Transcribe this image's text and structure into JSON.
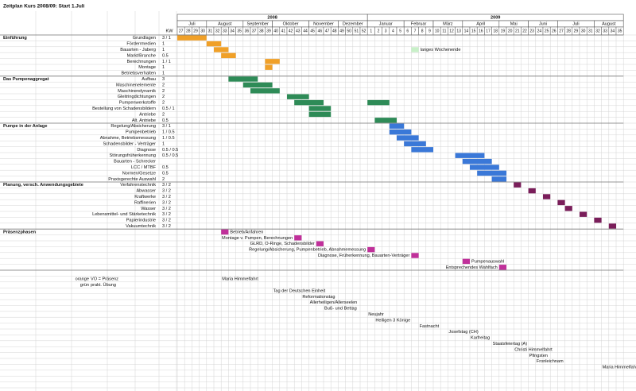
{
  "title": "Zeitplan Kurs 2008/09: Start 1.Juli",
  "kw_label": "KW",
  "kw": [
    27,
    28,
    29,
    30,
    31,
    32,
    33,
    34,
    35,
    36,
    37,
    38,
    39,
    40,
    41,
    42,
    43,
    44,
    45,
    46,
    47,
    48,
    49,
    50,
    51,
    52,
    1,
    2,
    3,
    4,
    5,
    6,
    7,
    8,
    9,
    10,
    11,
    12,
    13,
    14,
    15,
    16,
    17,
    18,
    19,
    20,
    21,
    22,
    23,
    24,
    25,
    26,
    27,
    28,
    29,
    30,
    31,
    32,
    33,
    34,
    35
  ],
  "years": [
    {
      "label": "2008",
      "start": "2008-27"
    },
    {
      "label": "2009",
      "start": "2009-1"
    }
  ],
  "months": [
    {
      "label": "Juli",
      "start": "2008-27"
    },
    {
      "label": "August",
      "start": "2008-31"
    },
    {
      "label": "September",
      "start": "2008-36"
    },
    {
      "label": "Oktober",
      "start": "2008-40"
    },
    {
      "label": "November",
      "start": "2008-45"
    },
    {
      "label": "Dezember",
      "start": "2008-49"
    },
    {
      "label": "Januar",
      "start": "2009-1"
    },
    {
      "label": "Februar",
      "start": "2009-6"
    },
    {
      "label": "März",
      "start": "2009-10"
    },
    {
      "label": "April",
      "start": "2009-14"
    },
    {
      "label": "Mai",
      "start": "2009-19"
    },
    {
      "label": "Juni",
      "start": "2009-23"
    },
    {
      "label": "Juli",
      "start": "2009-27"
    },
    {
      "label": "August",
      "start": "2009-32"
    }
  ],
  "sections": [
    {
      "title": "Einführung",
      "color": "#f0a028",
      "rows": [
        {
          "label": "Grundlagen",
          "value": "3 / 1",
          "label_color": "#d98a10",
          "bars": [
            {
              "from": "2008-27",
              "to": "2008-30"
            }
          ]
        },
        {
          "label": "Förderrmedien",
          "value": "1",
          "bars": [
            {
              "from": "2008-31",
              "to": "2008-32"
            }
          ]
        },
        {
          "label": "Bauarten - Jaberg",
          "value": "1",
          "bars": [
            {
              "from": "2008-32",
              "to": "2008-33"
            }
          ]
        },
        {
          "label": "Markt/Branche",
          "value": "0.5",
          "bars": [
            {
              "from": "2008-33",
              "to": "2008-34"
            }
          ]
        },
        {
          "label": "Berechnungen",
          "value": "1 / 1",
          "label_color": "#d98a10",
          "bars": [
            {
              "from": "2008-39",
              "to": "2008-40"
            }
          ]
        },
        {
          "label": "Montage",
          "value": "1",
          "label_color": "#3a9a3a",
          "bars": [
            {
              "from": "2008-39",
              "to": "2008-39"
            }
          ]
        },
        {
          "label": "Betriebsverhalten",
          "value": "1",
          "label_color": "#3a9a3a",
          "bars": []
        }
      ]
    },
    {
      "title": "Das Pumpenaggregat",
      "color": "#2e8b57",
      "rows": [
        {
          "label": "Aufbau",
          "value": "3",
          "bars": [
            {
              "from": "2008-34",
              "to": "2008-37"
            }
          ]
        },
        {
          "label": "Maschinenelemente",
          "value": "2",
          "bars": [
            {
              "from": "2008-36",
              "to": "2008-39"
            }
          ]
        },
        {
          "label": "Maschinendynamik",
          "value": "2",
          "bars": [
            {
              "from": "2008-37",
              "to": "2008-40"
            }
          ]
        },
        {
          "label": "Gleitringdichtungen",
          "value": "2",
          "label_color": "#d98a10",
          "bars": [
            {
              "from": "2008-42",
              "to": "2008-44"
            }
          ]
        },
        {
          "label": "Pumpenwerkstoffe",
          "value": "2",
          "bars": [
            {
              "from": "2008-43",
              "to": "2008-46"
            },
            {
              "from": "2009-1",
              "to": "2009-3"
            }
          ]
        },
        {
          "label": "Bestellung von Schadensbildern",
          "value": "0.5 / 1",
          "label_color": "#3a9a3a",
          "bars": [
            {
              "from": "2008-45",
              "to": "2008-47"
            }
          ]
        },
        {
          "label": "Antriebe",
          "value": "2",
          "bars": [
            {
              "from": "2008-45",
              "to": "2008-47"
            }
          ]
        },
        {
          "label": "Alt. Antriebe",
          "value": "0.5",
          "bars": [
            {
              "from": "2009-2",
              "to": "2009-4"
            }
          ]
        }
      ]
    },
    {
      "title": "Pumpe in der Anlage",
      "color": "#3a78d8",
      "rows": [
        {
          "label": "Regelung/Absicherung",
          "value": "3 / 1",
          "label_color": "#d98a10",
          "bars": [
            {
              "from": "2009-4",
              "to": "2009-5"
            }
          ]
        },
        {
          "label": "Pumpenbetrieb",
          "value": "1 / 0.5",
          "label_color": "#d98a10",
          "bars": [
            {
              "from": "2009-4",
              "to": "2009-6"
            }
          ]
        },
        {
          "label": "Abnahme, Betriebsmessung",
          "value": "1 / 0.5",
          "label_color": "#3a9a3a",
          "bars": [
            {
              "from": "2009-5",
              "to": "2009-7"
            }
          ]
        },
        {
          "label": "Schadensbilder - Verträger",
          "value": "1",
          "bars": [
            {
              "from": "2009-6",
              "to": "2009-8"
            }
          ]
        },
        {
          "label": "Diagnose",
          "value": "0.5 / 0.5",
          "label_color": "#d98a10",
          "bars": [
            {
              "from": "2009-7",
              "to": "2009-9"
            }
          ]
        },
        {
          "label": "Störungsfrüherkennung",
          "value": "0.5 / 0.5",
          "label_color": "#d98a10",
          "bars": [
            {
              "from": "2009-13",
              "to": "2009-16"
            }
          ]
        },
        {
          "label": "Bauarten - Schrecker",
          "label_color": "#d98a10",
          "bars": [
            {
              "from": "2009-14",
              "to": "2009-17"
            }
          ]
        },
        {
          "label": "LCC / MTBF",
          "value": "0.5",
          "bars": [
            {
              "from": "2009-15",
              "to": "2009-18"
            }
          ]
        },
        {
          "label": "Normen/Gesetze",
          "value": "0.5",
          "bars": [
            {
              "from": "2009-16",
              "to": "2009-19"
            }
          ]
        },
        {
          "label": "Praxisgerechte Auswahl",
          "value": "2",
          "label_color": "#3a78d8",
          "bars": [
            {
              "from": "2009-18",
              "to": "2009-19"
            }
          ]
        }
      ]
    },
    {
      "title": "Planung, versch. Anwendungsgebiete",
      "color": "#7a1e5a",
      "rows": [
        {
          "label": "Verfahrenstechnik",
          "value": "3 / 2",
          "label_color": "#d98a10",
          "bars": [
            {
              "from": "2009-21",
              "to": "2009-21"
            }
          ]
        },
        {
          "label": "Abwasser",
          "value": "3 / 2",
          "label_color": "#d98a10",
          "bars": [
            {
              "from": "2009-23",
              "to": "2009-23"
            }
          ]
        },
        {
          "label": "Kraftwerke",
          "value": "3 / 2",
          "label_color": "#d98a10",
          "bars": [
            {
              "from": "2009-25",
              "to": "2009-25"
            }
          ]
        },
        {
          "label": "Raffinerien",
          "value": "3 / 2",
          "label_color": "#d98a10",
          "bars": [
            {
              "from": "2009-27",
              "to": "2009-27"
            }
          ]
        },
        {
          "label": "Wasser",
          "value": "3 / 2",
          "label_color": "#d98a10",
          "bars": [
            {
              "from": "2009-28",
              "to": "2009-28"
            }
          ]
        },
        {
          "label": "Lebensmittel- und Stärketechnik",
          "value": "3 / 2",
          "label_color": "#d98a10",
          "bars": [
            {
              "from": "2009-30",
              "to": "2009-30"
            }
          ]
        },
        {
          "label": "Papierindustrie",
          "value": "3 / 2",
          "label_color": "#d98a10",
          "bars": [
            {
              "from": "2009-32",
              "to": "2009-32"
            }
          ]
        },
        {
          "label": "Vakuumtechnik",
          "value": "3 / 2",
          "label_color": "#d98a10",
          "bars": [
            {
              "from": "2009-34",
              "to": "2009-34"
            }
          ]
        }
      ]
    }
  ],
  "presence": {
    "title": "Präsenzphasen",
    "color": "#c0309a",
    "phases": [
      {
        "label": "Betrieb/Anfahren",
        "week": "2008-33",
        "side": "right"
      },
      {
        "label": "Montage v. Pumpen, Berechnungen",
        "week": "2008-43",
        "side": "left"
      },
      {
        "label": "GLRD, O-Ringe, Schadensbilder",
        "week": "2008-46",
        "side": "left"
      },
      {
        "label": "Regelung/Absicherung, Pumpenbetrieb, Abnahmemessung",
        "week": "2009-1",
        "side": "left"
      },
      {
        "label": "Diagnose, Früherkennung, Bauarten-Verträger",
        "week": "2009-7",
        "side": "left"
      },
      {
        "label": "Pumpenauswahl",
        "week": "2009-14",
        "side": "right"
      },
      {
        "label": "Entsprechendes Wahlfach",
        "week": "2009-19",
        "side": "left"
      }
    ]
  },
  "long_weekend": {
    "label": "langes Wochenende",
    "color": "#c8f0c8",
    "week": "2009-7"
  },
  "legend": [
    {
      "word": "orange",
      "color": "#e08a00",
      "text": "VO = Präsenz"
    },
    {
      "word": "grün",
      "color": "#3a9a3a",
      "text": "prakt. Übung"
    }
  ],
  "holidays": [
    {
      "label": "Maria Himmelfahrt",
      "week": "2008-33"
    },
    {
      "label": "Tag der Deutschen Einheit",
      "week": "2008-40"
    },
    {
      "label": "Reformationstag",
      "week": "2008-44"
    },
    {
      "label": "Allerheiligen/Allerseelen",
      "week": "2008-45"
    },
    {
      "label": "Buß- und Bettag",
      "week": "2008-47"
    },
    {
      "label": "Neujahr",
      "week": "2009-1"
    },
    {
      "label": "Heiligen 3 Könige",
      "week": "2009-2"
    },
    {
      "label": "Fastnacht",
      "week": "2009-8"
    },
    {
      "label": "Josefstag (CH)",
      "week": "2009-12"
    },
    {
      "label": "Karfreitag",
      "week": "2009-15"
    },
    {
      "label": "Staatsfeiertag (A)",
      "week": "2009-18"
    },
    {
      "label": "Christi Himmelfahrt",
      "week": "2009-21"
    },
    {
      "label": "Pfingsten",
      "week": "2009-23"
    },
    {
      "label": "Fronleichnam",
      "week": "2009-24"
    },
    {
      "label": "Maria Himmelfahrt",
      "week": "2009-33"
    }
  ]
}
